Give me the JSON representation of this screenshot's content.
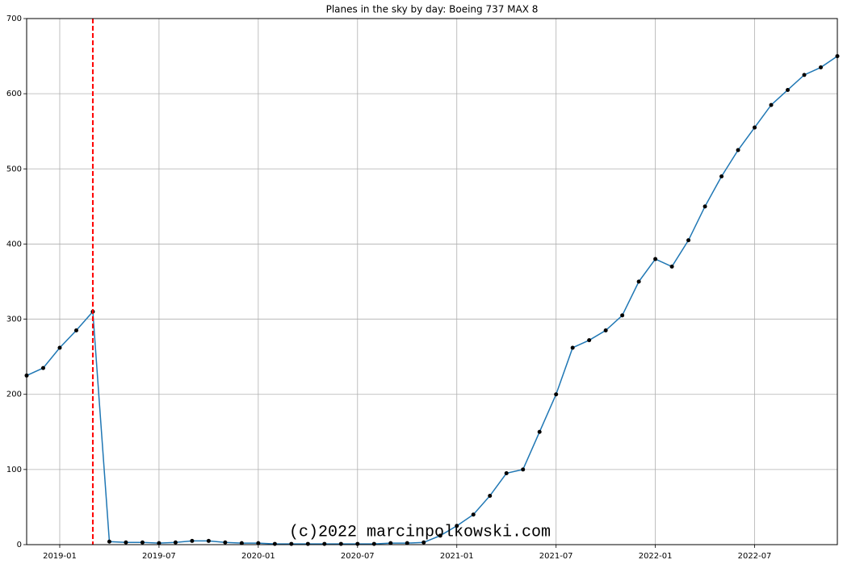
{
  "chart_data": {
    "type": "line",
    "title": "Planes in the sky by day: Boeing 737 MAX 8",
    "x": [
      "2018-11",
      "2018-12",
      "2019-01",
      "2019-02",
      "2019-03",
      "2019-04",
      "2019-05",
      "2019-06",
      "2019-07",
      "2019-08",
      "2019-09",
      "2019-10",
      "2019-11",
      "2019-12",
      "2020-01",
      "2020-02",
      "2020-03",
      "2020-04",
      "2020-05",
      "2020-06",
      "2020-07",
      "2020-08",
      "2020-09",
      "2020-10",
      "2020-11",
      "2020-12",
      "2021-01",
      "2021-02",
      "2021-03",
      "2021-04",
      "2021-05",
      "2021-06",
      "2021-07",
      "2021-08",
      "2021-09",
      "2021-10",
      "2021-11",
      "2021-12",
      "2022-01",
      "2022-02",
      "2022-03",
      "2022-04",
      "2022-05",
      "2022-06",
      "2022-07",
      "2022-08",
      "2022-09",
      "2022-10",
      "2022-11",
      "2022-12"
    ],
    "series": [
      {
        "name": "Boeing 737 MAX 8",
        "color": "#1f77b4",
        "marker_color": "#000000",
        "values": [
          225,
          235,
          262,
          285,
          310,
          4,
          3,
          3,
          2,
          3,
          5,
          5,
          3,
          2,
          2,
          1,
          1,
          1,
          1,
          1,
          1,
          1,
          2,
          2,
          3,
          12,
          25,
          40,
          65,
          95,
          100,
          150,
          200,
          262,
          272,
          285,
          305,
          350,
          380,
          370,
          405,
          450,
          490,
          525,
          555,
          585,
          605,
          625,
          635,
          650
        ]
      }
    ],
    "xlim": [
      "2018-11",
      "2022-12"
    ],
    "xticks": [
      "2019-01",
      "2019-07",
      "2020-01",
      "2020-07",
      "2021-01",
      "2021-07",
      "2022-01",
      "2022-07"
    ],
    "ylim": [
      0,
      700
    ],
    "yticks": [
      0,
      100,
      200,
      300,
      400,
      500,
      600,
      700
    ],
    "grid": true,
    "event_line": {
      "x": "2019-03",
      "color": "#ff0000"
    },
    "annotation": "(c)2022 marcinpolkowski.com"
  }
}
